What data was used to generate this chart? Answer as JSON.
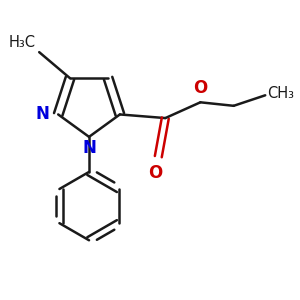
{
  "bg_color": "#ffffff",
  "bond_color": "#1a1a1a",
  "n_color": "#0000dd",
  "o_color": "#cc0000",
  "bond_lw": 1.8,
  "font_size": 10.5,
  "figsize": [
    3.0,
    3.0
  ],
  "dpi": 100,
  "xlim": [
    -0.55,
    1.1
  ],
  "ylim": [
    -0.75,
    0.75
  ]
}
